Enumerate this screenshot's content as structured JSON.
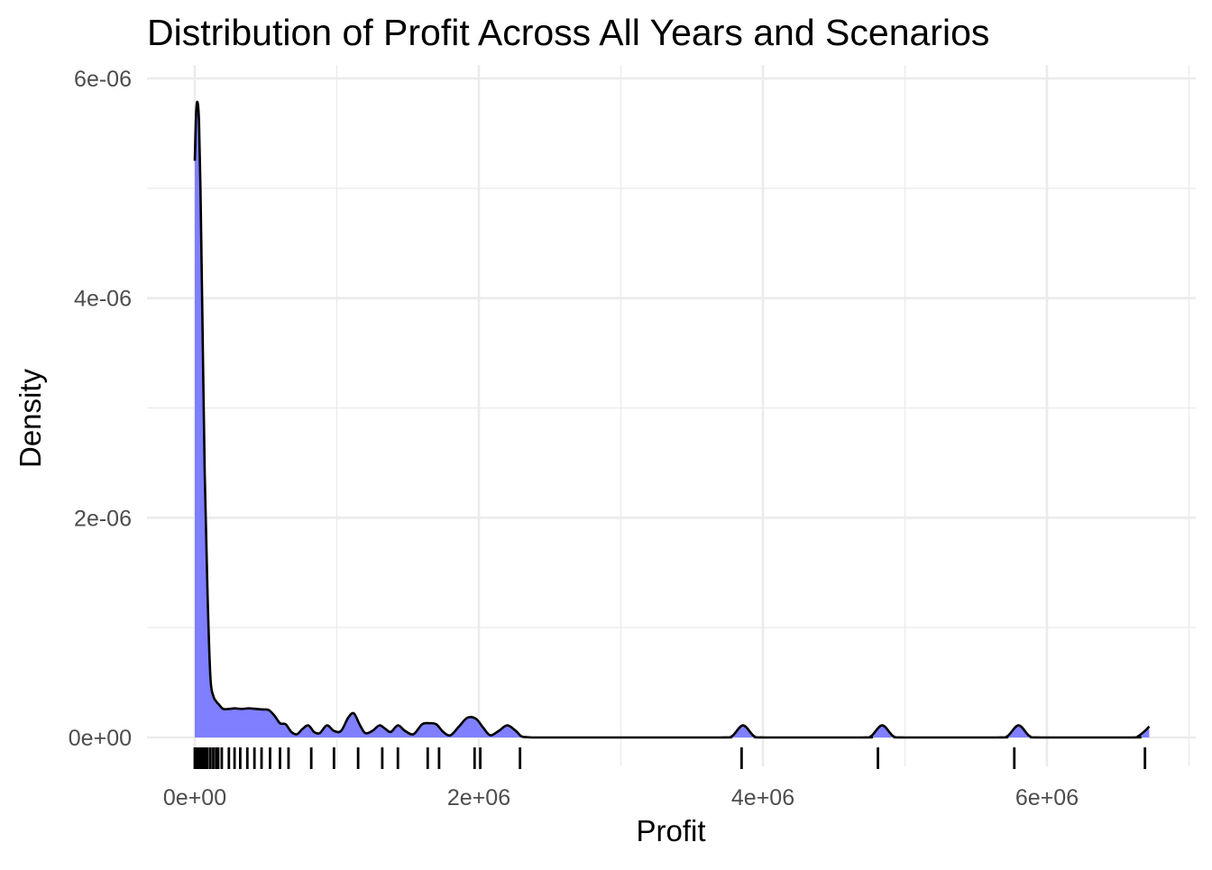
{
  "chart_data": {
    "type": "area",
    "subtype": "density",
    "title": "Distribution of Profit Across All Years and Scenarios",
    "xlabel": "Profit",
    "ylabel": "Density",
    "xlim": [
      -340000,
      7070000
    ],
    "ylim": [
      -3e-07,
      6e-06
    ],
    "x_ticks": [
      {
        "value": 0,
        "label": "0e+00"
      },
      {
        "value": 2000000,
        "label": "2e+06"
      },
      {
        "value": 4000000,
        "label": "4e+06"
      },
      {
        "value": 6000000,
        "label": "6e+06"
      }
    ],
    "x_minor_ticks": [
      1000000,
      3000000,
      5000000,
      7000000
    ],
    "y_ticks": [
      {
        "value": 0,
        "label": "0e+00"
      },
      {
        "value": 2e-06,
        "label": "2e-06"
      },
      {
        "value": 4e-06,
        "label": "4e-06"
      },
      {
        "value": 6e-06,
        "label": "6e-06"
      }
    ],
    "y_minor_ticks": [
      1e-06,
      3e-06,
      5e-06
    ],
    "grid": true,
    "legend": "none",
    "colors": {
      "fill": "#7f7fff",
      "line": "#000000",
      "rug": "#000000",
      "grid": "#ebebeb",
      "tick_text": "#4d4d4d"
    },
    "series": [
      {
        "x": [
          0,
          10000,
          20000,
          30000,
          40000,
          55000,
          70000,
          90000,
          110000,
          130000,
          150000,
          170000,
          200000,
          240000,
          280000,
          330000,
          380000,
          430000,
          480000,
          520000,
          560000,
          600000,
          640000,
          680000,
          720000,
          760000,
          800000,
          840000,
          880000,
          930000,
          980000,
          1030000,
          1080000,
          1120000,
          1160000,
          1200000,
          1250000,
          1300000,
          1340000,
          1380000,
          1430000,
          1480000,
          1540000,
          1600000,
          1650000,
          1700000,
          1750000,
          1800000,
          1860000,
          1920000,
          1980000,
          2030000,
          2080000,
          2140000,
          2200000,
          2260000,
          2300000,
          2340000,
          2380000,
          2450000,
          3000000,
          3700000,
          3780000,
          3860000,
          3940000,
          4020000,
          4700000,
          4760000,
          4840000,
          4920000,
          5000000,
          5650000,
          5720000,
          5800000,
          5880000,
          5960000,
          6600000,
          6640000,
          6690000,
          6720000
        ],
        "y": [
          5.25e-06,
          5.7e-06,
          5.78e-06,
          5.6e-06,
          5e-06,
          3.7e-06,
          2.4e-06,
          1.3e-06,
          5.5e-07,
          3.8e-07,
          3.3e-07,
          3e-07,
          2.6e-07,
          2.6e-07,
          2.65e-07,
          2.6e-07,
          2.65e-07,
          2.6e-07,
          2.55e-07,
          2.5e-07,
          2e-07,
          1.3e-07,
          1.2e-07,
          5e-08,
          3e-08,
          8e-08,
          1.1e-07,
          5e-08,
          4e-08,
          1.1e-07,
          6e-08,
          6e-08,
          1.8e-07,
          2.2e-07,
          1.2e-07,
          4e-08,
          6e-08,
          1.1e-07,
          8e-08,
          5e-08,
          1.1e-07,
          6e-08,
          3e-08,
          1.2e-07,
          1.3e-07,
          1.2e-07,
          5e-08,
          2e-08,
          1e-07,
          1.8e-07,
          1.7e-07,
          9e-08,
          2e-08,
          6e-08,
          1.1e-07,
          6e-08,
          1e-08,
          3e-09,
          0,
          0,
          0,
          0,
          1e-08,
          1.1e-07,
          1e-08,
          0,
          0,
          1e-08,
          1.1e-07,
          1e-08,
          0,
          0,
          1e-08,
          1.1e-07,
          1e-08,
          0,
          0,
          1e-08,
          6e-08,
          1e-07
        ]
      }
    ],
    "rug": [
      0,
      5000,
      10000,
      15000,
      20000,
      25000,
      30000,
      35000,
      40000,
      45000,
      50000,
      55000,
      60000,
      65000,
      70000,
      75000,
      80000,
      90000,
      110000,
      130000,
      150000,
      165000,
      190000,
      240000,
      280000,
      320000,
      370000,
      420000,
      470000,
      530000,
      600000,
      660000,
      820000,
      980000,
      1150000,
      1320000,
      1430000,
      1640000,
      1720000,
      1970000,
      2010000,
      2290000,
      3850000,
      4810000,
      5770000,
      6690000
    ]
  }
}
